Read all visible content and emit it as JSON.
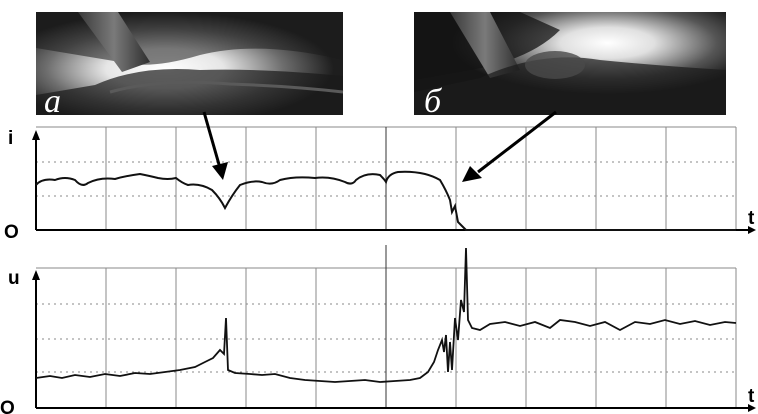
{
  "photos": {
    "left_label": "а",
    "right_label": "б"
  },
  "current_plot": {
    "y_axis_label": "i",
    "origin_label": "O",
    "x_axis_label": "t"
  },
  "voltage_plot": {
    "y_axis_label": "u",
    "origin_label": "O",
    "x_axis_label": "t"
  },
  "colors": {
    "trace": "#111111",
    "grid": "#8a8a8a",
    "photo_dark": "#1a1a1a",
    "arc_glow": "#f4f4f4"
  }
}
